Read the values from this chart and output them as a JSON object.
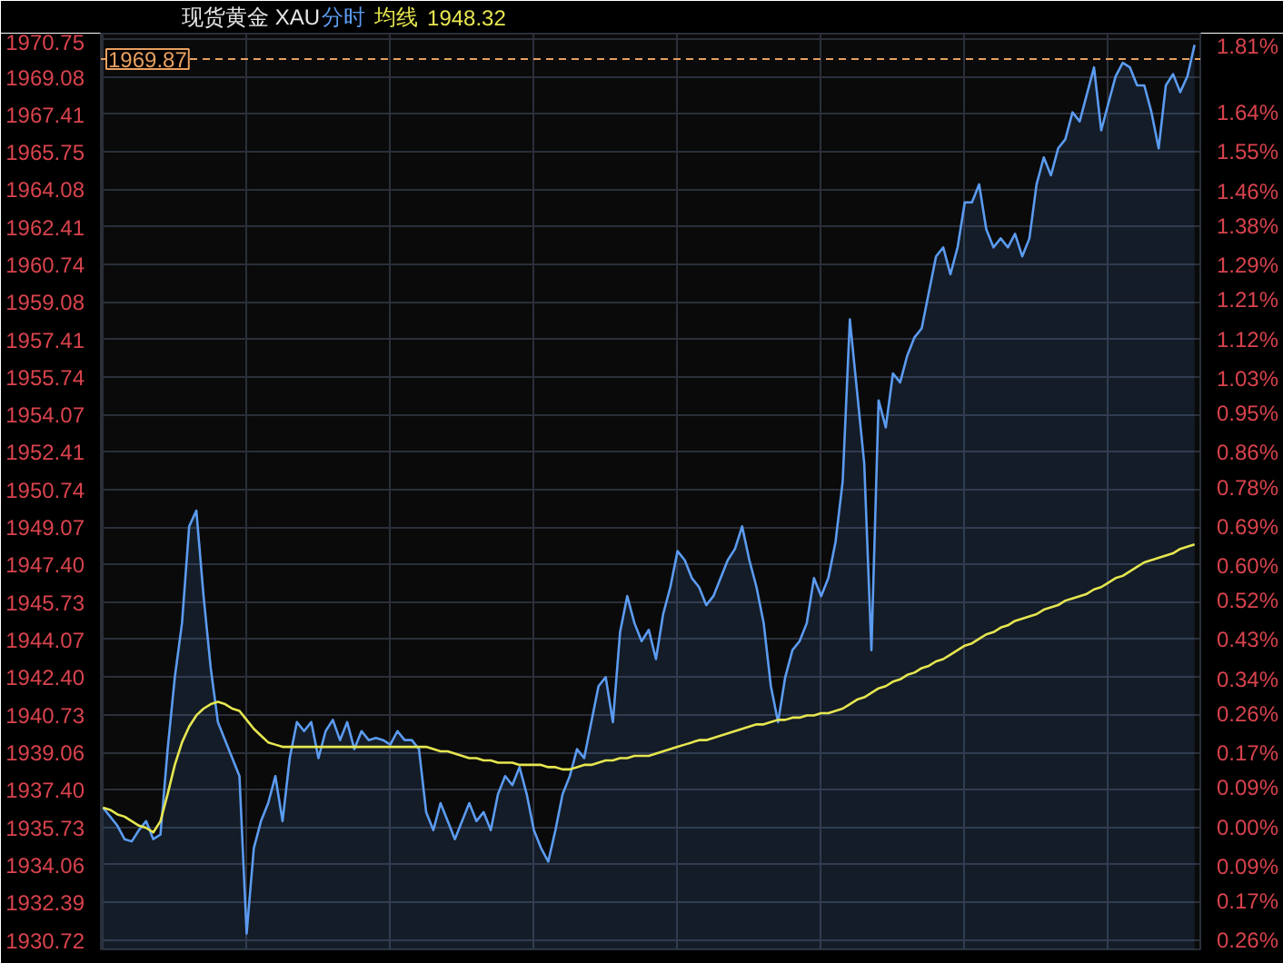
{
  "chart_data": {
    "type": "area",
    "title": "现货黄金 XAU",
    "annotations": [
      "1948.32"
    ],
    "grid": true,
    "tick_labels": "y",
    "marker": "none",
    "categories": [
      null,
      null,
      null,
      null,
      null,
      null,
      null,
      null,
      null,
      null,
      null,
      null,
      null,
      null,
      null,
      null,
      null,
      null,
      null,
      null,
      null,
      null,
      null,
      null,
      null,
      null,
      null,
      null,
      null,
      null,
      null,
      null,
      null,
      null,
      null,
      null,
      null,
      null,
      null,
      null,
      null,
      null,
      null,
      null,
      null,
      null,
      null,
      null,
      null,
      null,
      null,
      null,
      null,
      null,
      null,
      null,
      null,
      null,
      null,
      null,
      null,
      null,
      null,
      null,
      null,
      null,
      null,
      null,
      null,
      null,
      null,
      null,
      null,
      null,
      null,
      null,
      null,
      null,
      null,
      null,
      null,
      null,
      null,
      null,
      null,
      null,
      null,
      null,
      null,
      null,
      null,
      null,
      null,
      null,
      null,
      null,
      null,
      null,
      null,
      null,
      null,
      null,
      null,
      null,
      null,
      null,
      null,
      null,
      null,
      null,
      null,
      null,
      null,
      null,
      null,
      null,
      null,
      null,
      null,
      null,
      null,
      null,
      null,
      null,
      null,
      null,
      null,
      null,
      null,
      null,
      null,
      null,
      null,
      null,
      null,
      null,
      null,
      null,
      null,
      null,
      null,
      null,
      null,
      null,
      null,
      null,
      null,
      null,
      null,
      null,
      null,
      null,
      null
    ],
    "ylim": [
      1930.3,
      1971.0
    ],
    "yticks": [
      1970.75,
      1969.08,
      1967.41,
      1965.75,
      1964.08,
      1962.41,
      1960.74,
      1959.08,
      1957.41,
      1955.74,
      1954.07,
      1952.41,
      1950.74,
      1949.07,
      {
        "value": 1947.4,
        "label": "1947.40"
      },
      1945.73,
      1944.07,
      {
        "value": 1942.4,
        "label": "1942.40"
      },
      1940.73,
      1939.06,
      {
        "value": 1937.4,
        "label": "1937.40"
      },
      1935.73,
      1934.06,
      1932.39,
      1930.72
    ],
    "y2lim": [
      -0.2805,
      1.8221
    ],
    "y2ticks": [
      {
        "value": 1.81,
        "label": "1.81%"
      },
      {
        "value": 1.72,
        "label": null
      },
      {
        "value": 1.64,
        "label": "1.64%"
      },
      {
        "value": 1.55,
        "label": "1.55%"
      },
      {
        "value": 1.46,
        "label": "1.46%"
      },
      {
        "value": 1.38,
        "label": "1.38%"
      },
      {
        "value": 1.29,
        "label": "1.29%"
      },
      {
        "value": 1.21,
        "label": "1.21%"
      },
      {
        "value": 1.12,
        "label": "1.12%"
      },
      {
        "value": 1.03,
        "label": "1.03%"
      },
      {
        "value": 0.95,
        "label": "0.95%"
      },
      {
        "value": 0.86,
        "label": "0.86%"
      },
      {
        "value": 0.78,
        "label": "0.78%"
      },
      {
        "value": 0.69,
        "label": "0.69%"
      },
      {
        "value": 0.6,
        "label": "0.60%"
      },
      {
        "value": 0.52,
        "label": "0.52%"
      },
      {
        "value": 0.43,
        "label": "0.43%"
      },
      {
        "value": 0.34,
        "label": "0.34%"
      },
      {
        "value": 0.26,
        "label": "0.26%"
      },
      {
        "value": 0.17,
        "label": "0.17%"
      },
      {
        "value": 0.09,
        "label": "0.09%"
      },
      {
        "value": 0,
        "label": "0.00%"
      },
      {
        "value": -0.09,
        "label": "0.09%"
      },
      {
        "value": -0.17,
        "label": "0.17%"
      },
      {
        "value": -0.26,
        "label": "0.26%"
      }
    ],
    "ref_lines": [
      {
        "axis": "y",
        "value": 1969.87,
        "label": "1969.87",
        "color": "#e8a060",
        "line_style": "dashed"
      }
    ],
    "series": [
      {
        "name": "分时",
        "color": "#5b9bf0",
        "values": [
          1936.6,
          1936.2,
          1935.8,
          1935.2,
          1935.1,
          1935.6,
          1936.0,
          1935.2,
          1935.4,
          1939.2,
          1942.4,
          1944.8,
          1949.1,
          1949.8,
          1946.0,
          1942.8,
          1940.4,
          1939.6,
          1938.8,
          1938.0,
          1931.0,
          1934.8,
          1936.0,
          1936.8,
          1938.0,
          1936.0,
          1938.8,
          1940.4,
          1940.0,
          1940.4,
          1938.8,
          1940.0,
          1940.5,
          1939.6,
          1940.4,
          1939.2,
          1940.0,
          1939.6,
          1939.7,
          1939.6,
          1939.4,
          1940.0,
          1939.6,
          1939.6,
          1939.2,
          1936.4,
          1935.6,
          1936.8,
          1936.0,
          1935.2,
          1936.0,
          1936.8,
          1936.0,
          1936.4,
          1935.6,
          1937.2,
          1938.0,
          1937.6,
          1938.4,
          1937.2,
          1935.6,
          1934.8,
          1934.2,
          1935.6,
          1937.2,
          1938.0,
          1939.2,
          1938.8,
          1940.4,
          1942.0,
          1942.4,
          1940.4,
          1944.4,
          1946.0,
          1944.8,
          1944.0,
          1944.5,
          1943.2,
          1945.2,
          1946.4,
          1948.0,
          1947.6,
          1946.8,
          1946.4,
          1945.6,
          1946.0,
          1946.8,
          1947.6,
          1948.1,
          1949.1,
          1947.6,
          1946.4,
          1944.8,
          1942.0,
          1940.4,
          1942.4,
          1943.6,
          1944.0,
          1944.8,
          1946.8,
          1946.0,
          1946.8,
          1948.4,
          1951.1,
          1958.3,
          1955.1,
          1951.9,
          1943.6,
          1954.7,
          1953.5,
          1955.9,
          1955.5,
          1956.7,
          1957.5,
          1957.9,
          1959.5,
          1961.1,
          1961.5,
          1960.3,
          1961.5,
          1963.5,
          1963.5,
          1964.3,
          1962.3,
          1961.5,
          1961.9,
          1961.5,
          1962.1,
          1961.1,
          1961.9,
          1964.3,
          1965.5,
          1964.7,
          1965.9,
          1966.3,
          1967.5,
          1967.1,
          1968.3,
          1969.5,
          1966.7,
          1967.9,
          1969.1,
          1969.7,
          1969.5,
          1968.7,
          1968.7,
          1967.5,
          1965.9,
          1968.7,
          1969.2,
          1968.4,
          1969.1,
          1970.5
        ]
      },
      {
        "name": "均线",
        "type": "line",
        "color": "#e6e650",
        "values": [
          1936.6,
          1936.5,
          1936.3,
          1936.2,
          1936.0,
          1935.8,
          1935.7,
          1935.5,
          1936.0,
          1937.2,
          1938.5,
          1939.5,
          1940.2,
          1940.7,
          1941.0,
          1941.2,
          1941.3,
          1941.2,
          1941.0,
          1940.9,
          1940.5,
          1940.1,
          1939.8,
          1939.5,
          1939.4,
          1939.3,
          1939.3,
          1939.3,
          1939.3,
          1939.3,
          1939.3,
          1939.3,
          1939.3,
          1939.3,
          1939.3,
          1939.3,
          1939.3,
          1939.3,
          1939.3,
          1939.3,
          1939.3,
          1939.3,
          1939.3,
          1939.3,
          1939.3,
          1939.3,
          1939.2,
          1939.1,
          1939.1,
          1939.0,
          1938.9,
          1938.8,
          1938.8,
          1938.7,
          1938.7,
          1938.6,
          1938.6,
          1938.6,
          1938.5,
          1938.5,
          1938.5,
          1938.5,
          1938.4,
          1938.4,
          1938.3,
          1938.3,
          1938.4,
          1938.5,
          1938.5,
          1938.6,
          1938.7,
          1938.7,
          1938.8,
          1938.8,
          1938.9,
          1938.9,
          1938.9,
          1939.0,
          1939.1,
          1939.2,
          1939.3,
          1939.4,
          1939.5,
          1939.6,
          1939.6,
          1939.7,
          1939.8,
          1939.9,
          1940.0,
          1940.1,
          1940.2,
          1940.3,
          1940.3,
          1940.4,
          1940.5,
          1940.5,
          1940.6,
          1940.6,
          1940.7,
          1940.7,
          1940.8,
          1940.8,
          1940.9,
          1941.0,
          1941.2,
          1941.4,
          1941.5,
          1941.7,
          1941.9,
          1942.0,
          1942.2,
          1942.3,
          1942.5,
          1942.6,
          1942.8,
          1942.9,
          1943.1,
          1943.2,
          1943.4,
          1943.6,
          1943.8,
          1943.9,
          1944.1,
          1944.3,
          1944.4,
          1944.6,
          1944.7,
          1944.9,
          1945.0,
          1945.1,
          1945.2,
          1945.4,
          1945.5,
          1945.6,
          1945.8,
          1945.9,
          1946.0,
          1946.1,
          1946.3,
          1946.4,
          1946.6,
          1946.8,
          1946.9,
          1947.1,
          1947.3,
          1947.5,
          1947.6,
          1947.7,
          1947.8,
          1947.9,
          1948.1,
          1948.2,
          1948.3
        ]
      }
    ]
  }
}
